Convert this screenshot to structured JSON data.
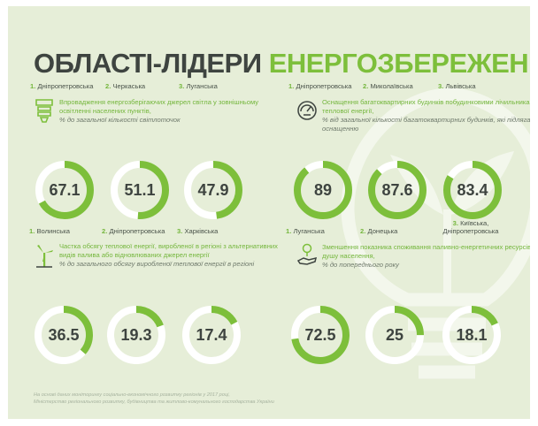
{
  "title": {
    "part1": "ОБЛАСТІ-ЛІДЕРИ",
    "part2": "ЕНЕРГОЗБЕРЕЖЕННЯ"
  },
  "colors": {
    "accent": "#7dbf3b",
    "track": "#ffffff",
    "text": "#3e4440",
    "background": "#e6eed8"
  },
  "icons": [
    "led-lamp-icon",
    "meter-gauge-icon",
    "wind-turbine-icon",
    "hand-plant-icon",
    "lightbulb-icon"
  ],
  "sections": [
    {
      "title": "Впровадження енергозберігаючих джерел світла у зовнішньому освітленні населених пунктів,",
      "subtitle": "% до загальної кількості світлоточок",
      "items": [
        {
          "rank": "1.",
          "name": "Дніпропетровська",
          "value": "67.1"
        },
        {
          "rank": "2.",
          "name": "Черкаська",
          "value": "51.1"
        },
        {
          "rank": "3.",
          "name": "Луганська",
          "value": "47.9"
        }
      ]
    },
    {
      "title": "Оснащення багатоквартирних будинків побудинковими лічильниками теплової енергії,",
      "subtitle": "% від загальної кількості багатоквартирних будинків, які підлягають оснащенню",
      "items": [
        {
          "rank": "1.",
          "name": "Дніпропетровська",
          "value": "89"
        },
        {
          "rank": "2.",
          "name": "Миколаївська",
          "value": "87.6"
        },
        {
          "rank": "3.",
          "name": "Львівська",
          "value": "83.4"
        }
      ]
    },
    {
      "title": "Частка обсягу теплової енергії, виробленої в регіоні з альтернативних видів палива або відновлюваних джерел енергії",
      "subtitle": "% до загального обсягу виробленої теплової енергії в регіоні",
      "items": [
        {
          "rank": "1.",
          "name": "Волинська",
          "value": "36.5"
        },
        {
          "rank": "2.",
          "name": "Дніпропетровська",
          "value": "19.3"
        },
        {
          "rank": "3.",
          "name": "Харківська",
          "value": "17.4"
        }
      ]
    },
    {
      "title": "Зменшення показника споживання паливно-енергетичних ресурсів на душу населення,",
      "subtitle": "% до попереднього року",
      "items": [
        {
          "rank": "1.",
          "name": "Луганська",
          "value": "72.5"
        },
        {
          "rank": "2.",
          "name": "Донецька",
          "value": "25"
        },
        {
          "rank": "3.",
          "name": "Київська, Дніпропетровська",
          "value": "18.1"
        }
      ]
    }
  ],
  "chart_data": [
    {
      "type": "pie",
      "categories": [
        "Дніпропетровська",
        "Черкаська",
        "Луганська"
      ],
      "values": [
        67.1,
        51.1,
        47.9
      ],
      "ylim": [
        0,
        100
      ]
    },
    {
      "type": "pie",
      "categories": [
        "Дніпропетровська",
        "Миколаївська",
        "Львівська"
      ],
      "values": [
        89,
        87.6,
        83.4
      ],
      "ylim": [
        0,
        100
      ]
    },
    {
      "type": "pie",
      "categories": [
        "Волинська",
        "Дніпропетровська",
        "Харківська"
      ],
      "values": [
        36.5,
        19.3,
        17.4
      ],
      "ylim": [
        0,
        100
      ]
    },
    {
      "type": "pie",
      "categories": [
        "Луганська",
        "Донецька",
        "Київська, Дніпропетровська"
      ],
      "values": [
        72.5,
        25,
        18.1
      ],
      "ylim": [
        0,
        100
      ]
    }
  ],
  "footer": {
    "line1": "На основі даних моніторингу соціально-економічного розвитку регіонів у 2017 році,",
    "line2": "Міністерство регіонального розвитку, будівництва та житлово-комунального господарства України"
  }
}
